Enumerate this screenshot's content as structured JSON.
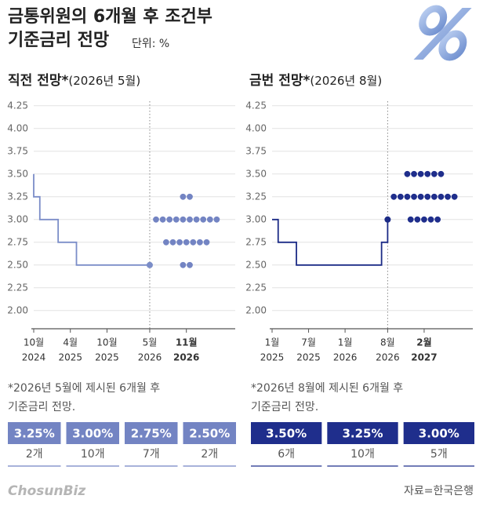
{
  "header": {
    "title_lines": [
      "금통위원의 6개월 후 조건부",
      "기준금리 전망"
    ],
    "unit": "단위: %"
  },
  "chart_data": [
    {
      "type": "line",
      "title": "직전 전망*",
      "subtitle": "(2026년 5월)",
      "color": "#7b8dc8",
      "grid": true,
      "ylim": [
        1.8,
        4.3
      ],
      "yticks": [
        4.25,
        {
          "value": 4,
          "label": "4.00"
        },
        3.75,
        {
          "value": 3.5,
          "label": "3.50"
        },
        3.25,
        {
          "value": 3,
          "label": "3.00"
        },
        2.75,
        {
          "value": 2.5,
          "label": "2.50"
        },
        2.25,
        {
          "value": 2,
          "label": "2.00"
        }
      ],
      "xlim": [
        "2024-10",
        "2027-07"
      ],
      "xticks": [
        {
          "value": "2024-10",
          "label": [
            "10월",
            "2024"
          ]
        },
        {
          "value": "2025-04",
          "label": [
            "4월",
            "2025"
          ]
        },
        {
          "value": "2025-10",
          "label": [
            "10월",
            "2025"
          ]
        },
        {
          "value": "2026-05",
          "label": [
            "5월",
            "2026"
          ]
        },
        {
          "value": "2026-11",
          "label": [
            "11월",
            "2026"
          ],
          "bold": true
        }
      ],
      "marker_date": "2026-05",
      "line": {
        "x": [
          "2024-10",
          "2024-10",
          "2024-11",
          "2024-11",
          "2025-02",
          "2025-02",
          "2025-05",
          "2025-05",
          "2026-05"
        ],
        "values": [
          3.5,
          3.25,
          3.25,
          3.0,
          3.0,
          2.75,
          2.75,
          2.5,
          2.5
        ]
      },
      "dots": {
        "x": "2026-11",
        "color": "#7384c3",
        "values": [
          3.25,
          3.0,
          2.75,
          2.5
        ],
        "counts": [
          2,
          10,
          7,
          2
        ],
        "value_labels": [
          "3.25%",
          "3.00%",
          "2.75%",
          "2.50%"
        ],
        "count_labels": [
          "2개",
          "10개",
          "7개",
          "2개"
        ]
      },
      "note": [
        "*2026년 5월에 제시된 6개월 후",
        "기준금리 전망."
      ]
    },
    {
      "type": "line",
      "title": "금번 전망*",
      "subtitle": "(2026년 8월)",
      "color": "#1c2b86",
      "grid": true,
      "ylim": [
        1.8,
        4.3
      ],
      "yticks": [
        4.25,
        {
          "value": 4,
          "label": "4.00"
        },
        3.75,
        {
          "value": 3.5,
          "label": "3.50"
        },
        3.25,
        {
          "value": 3,
          "label": "3.00"
        },
        2.75,
        {
          "value": 2.5,
          "label": "2.50"
        },
        2.25,
        {
          "value": 2,
          "label": "2.00"
        }
      ],
      "xlim": [
        "2025-01",
        "2027-10"
      ],
      "xticks": [
        {
          "value": "2025-01",
          "label": [
            "1월",
            "2025"
          ]
        },
        {
          "value": "2025-07",
          "label": [
            "7월",
            "2025"
          ]
        },
        {
          "value": "2026-01",
          "label": [
            "1월",
            "2026"
          ]
        },
        {
          "value": "2026-08",
          "label": [
            "8월",
            "2026"
          ]
        },
        {
          "value": "2027-02",
          "label": [
            "2월",
            "2027"
          ],
          "bold": true
        }
      ],
      "marker_date": "2026-08",
      "line": {
        "x": [
          "2025-01",
          "2025-02",
          "2025-02",
          "2025-05",
          "2025-05",
          "2026-07",
          "2026-07",
          "2026-08",
          "2026-08"
        ],
        "values": [
          3.0,
          3.0,
          2.75,
          2.75,
          2.5,
          2.5,
          2.75,
          2.75,
          3.0
        ]
      },
      "dots": {
        "x": "2027-02",
        "color": "#1f2e8c",
        "values": [
          3.5,
          3.25,
          3.0
        ],
        "counts": [
          6,
          10,
          5
        ],
        "value_labels": [
          "3.50%",
          "3.25%",
          "3.00%"
        ],
        "count_labels": [
          "6개",
          "10개",
          "5개"
        ]
      },
      "note": [
        "*2026년 8월에 제시된 6개월 후",
        "기준금리 전망."
      ]
    }
  ],
  "footer": {
    "logo": "ChosunBiz",
    "source": "자료=한국은행"
  }
}
